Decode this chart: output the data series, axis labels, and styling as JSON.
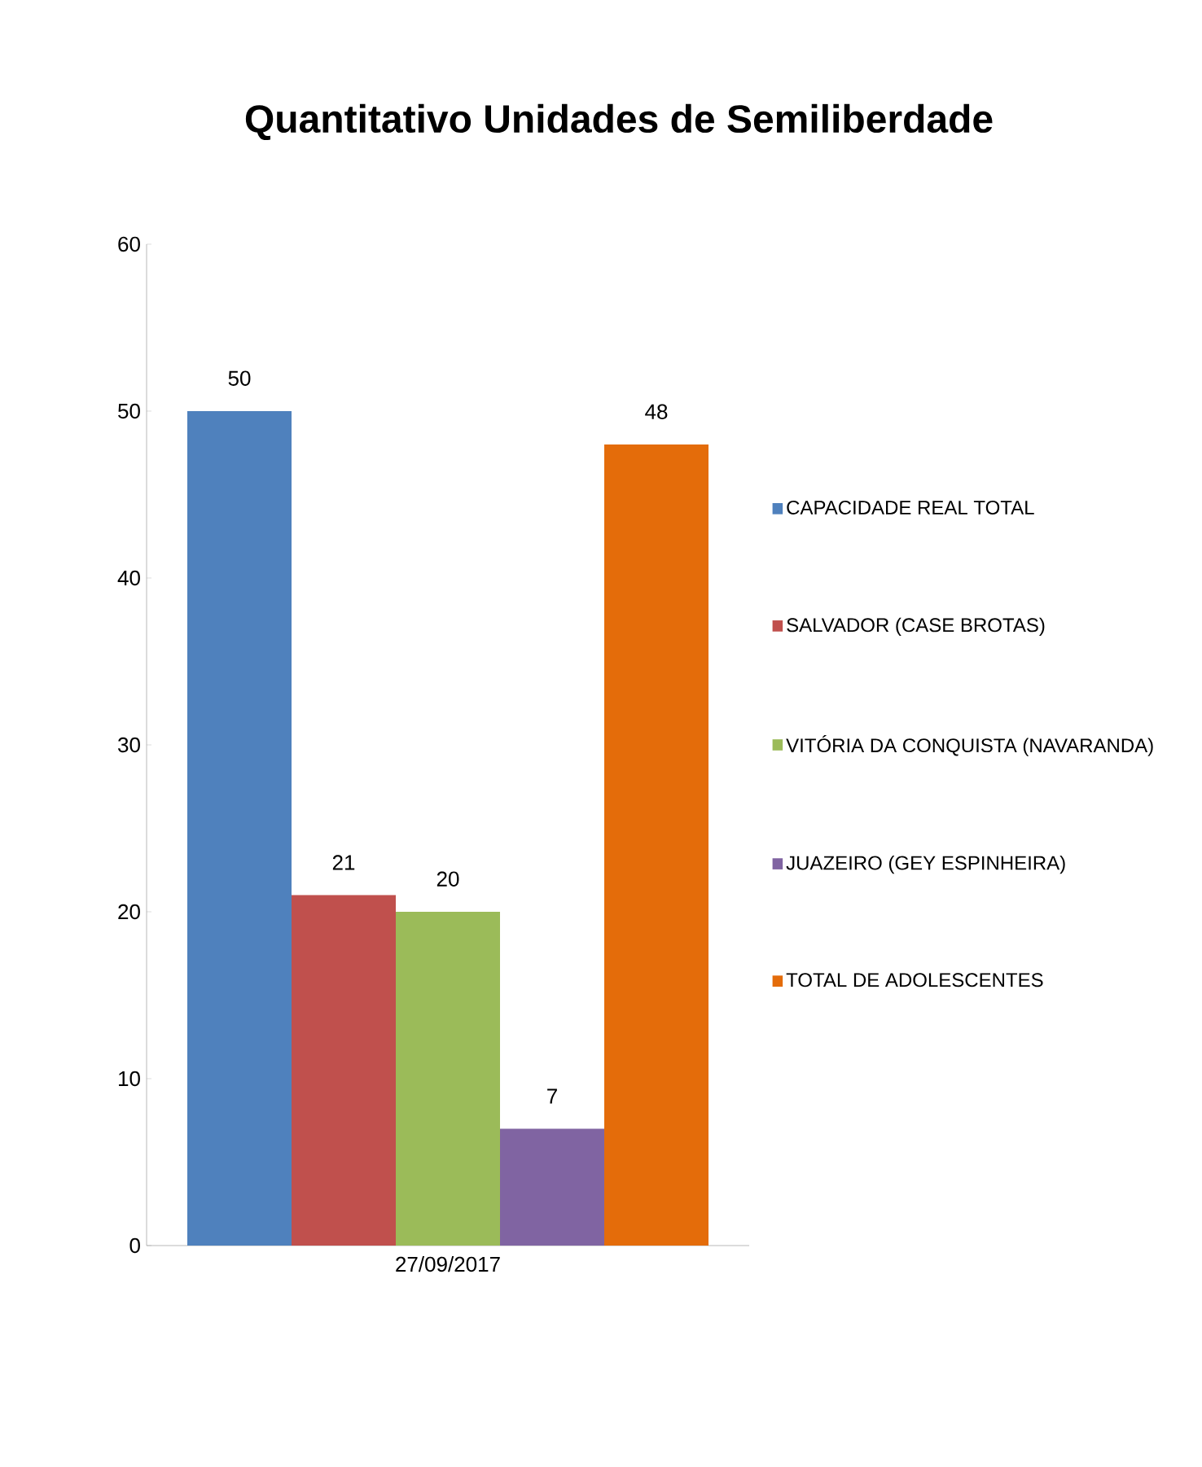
{
  "chart_data": {
    "type": "bar",
    "title": "Quantitativo Unidades de Semiliberdade",
    "categories": [
      "27/09/2017"
    ],
    "series": [
      {
        "name": "CAPACIDADE REAL TOTAL",
        "color": "#4f81bd",
        "values": [
          50
        ]
      },
      {
        "name": "SALVADOR (CASE BROTAS)",
        "color": "#c0504d",
        "values": [
          21
        ]
      },
      {
        "name": "VITÓRIA DA CONQUISTA (NAVARANDA)",
        "color": "#9bbb59",
        "values": [
          20
        ]
      },
      {
        "name": "JUAZEIRO (GEY ESPINHEIRA)",
        "color": "#8064a2",
        "values": [
          7
        ]
      },
      {
        "name": "TOTAL DE ADOLESCENTES",
        "color": "#e46c0a",
        "values": [
          48
        ]
      }
    ],
    "ylim": [
      0,
      60
    ],
    "yticks": [
      0,
      10,
      20,
      30,
      40,
      50,
      60
    ],
    "data_labels": true,
    "legend": "right",
    "grid": false
  }
}
